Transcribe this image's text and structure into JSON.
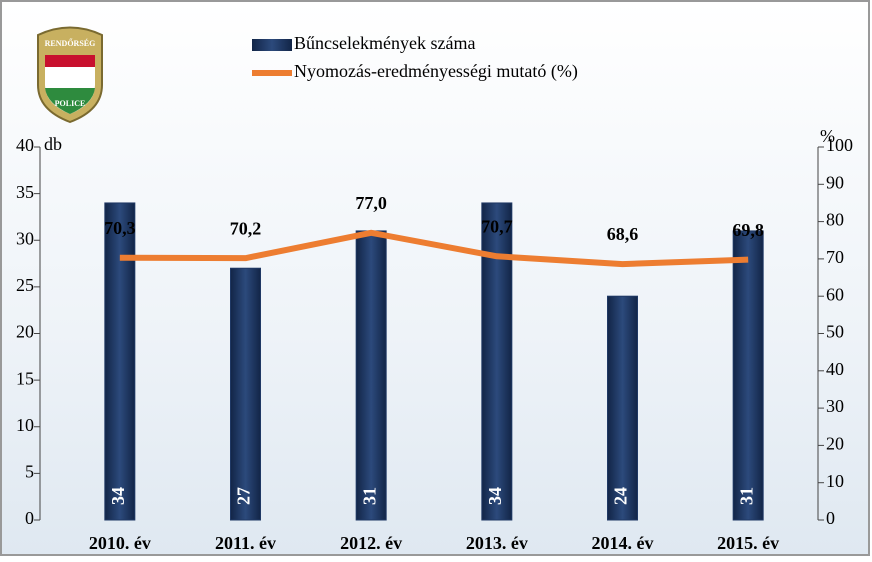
{
  "chart_data": {
    "type": "bar",
    "logo": {
      "top": "RENDŐRSÉG",
      "bottom": "POLICE"
    },
    "ylabel": "db",
    "y2label": "%",
    "categories": [
      "2010. év",
      "2011. év",
      "2012. év",
      "2013. év",
      "2014. év",
      "2015. év"
    ],
    "series": [
      {
        "name": "Bűncselekmények száma",
        "type": "bar",
        "color": "#1f3864",
        "values": [
          34,
          27,
          31,
          34,
          24,
          31
        ]
      },
      {
        "name": "Nyomozás-eredményességi mutató (%)",
        "type": "line",
        "axis": "y2",
        "color": "#ed7d31",
        "values": [
          70.3,
          70.2,
          77.0,
          70.7,
          68.6,
          69.8
        ],
        "value_labels": [
          "70,3",
          "70,2",
          "77,0",
          "70,7",
          "68,6",
          "69,8"
        ]
      }
    ],
    "ylim": [
      0,
      40
    ],
    "yticks": [
      0,
      5,
      10,
      15,
      20,
      25,
      30,
      35,
      40
    ],
    "y2lim": [
      0,
      100
    ],
    "y2ticks": [
      0,
      10,
      20,
      30,
      40,
      50,
      60,
      70,
      80,
      90,
      100
    ]
  }
}
